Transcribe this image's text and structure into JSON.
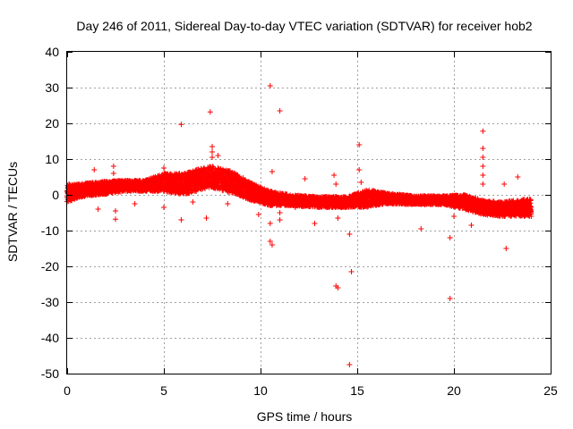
{
  "chart_data": {
    "type": "scatter",
    "title": "Day 246 of 2011, Sidereal Day-to-day VTEC variation (SDTVAR) for receiver hob2",
    "xlabel": "GPS time / hours",
    "ylabel": "SDTVAR / TECUs",
    "xlim": [
      0,
      25
    ],
    "ylim": [
      -50,
      40
    ],
    "xticks": [
      0,
      5,
      10,
      15,
      20,
      25
    ],
    "yticks": [
      -50,
      -40,
      -30,
      -20,
      -10,
      0,
      10,
      20,
      30,
      40
    ],
    "xtick_labels": [
      "0",
      "5",
      "10",
      "15",
      "20",
      "25"
    ],
    "ytick_labels": [
      "-50",
      "-40",
      "-30",
      "-20",
      "-10",
      "0",
      "10",
      "20",
      "30",
      "40"
    ],
    "grid": true,
    "marker": "+",
    "color": "#ff0000",
    "trend": [
      {
        "x": 0.0,
        "y": 0.5,
        "spread": 2.5
      },
      {
        "x": 0.5,
        "y": 1.0,
        "spread": 2.0
      },
      {
        "x": 1.0,
        "y": 1.5,
        "spread": 1.8
      },
      {
        "x": 2.0,
        "y": 2.0,
        "spread": 1.8
      },
      {
        "x": 3.0,
        "y": 2.5,
        "spread": 1.5
      },
      {
        "x": 4.0,
        "y": 2.5,
        "spread": 1.5
      },
      {
        "x": 5.0,
        "y": 3.5,
        "spread": 2.5
      },
      {
        "x": 6.0,
        "y": 3.0,
        "spread": 3.0
      },
      {
        "x": 7.0,
        "y": 4.5,
        "spread": 3.0
      },
      {
        "x": 7.5,
        "y": 5.0,
        "spread": 3.0
      },
      {
        "x": 8.5,
        "y": 3.5,
        "spread": 3.0
      },
      {
        "x": 9.5,
        "y": 1.0,
        "spread": 2.5
      },
      {
        "x": 10.5,
        "y": -1.0,
        "spread": 2.0
      },
      {
        "x": 11.5,
        "y": -1.5,
        "spread": 1.5
      },
      {
        "x": 13.0,
        "y": -2.0,
        "spread": 1.5
      },
      {
        "x": 14.5,
        "y": -2.0,
        "spread": 1.5
      },
      {
        "x": 15.5,
        "y": -1.0,
        "spread": 2.5
      },
      {
        "x": 16.5,
        "y": -1.0,
        "spread": 1.5
      },
      {
        "x": 18.0,
        "y": -1.5,
        "spread": 1.2
      },
      {
        "x": 19.5,
        "y": -1.5,
        "spread": 1.2
      },
      {
        "x": 20.5,
        "y": -2.0,
        "spread": 2.0
      },
      {
        "x": 21.5,
        "y": -3.5,
        "spread": 2.0
      },
      {
        "x": 22.5,
        "y": -4.0,
        "spread": 2.0
      },
      {
        "x": 24.0,
        "y": -3.5,
        "spread": 2.5
      }
    ],
    "sparse_points": [
      {
        "x": 1.4,
        "y": 7.0
      },
      {
        "x": 2.4,
        "y": 8.0
      },
      {
        "x": 2.4,
        "y": 6.0
      },
      {
        "x": 2.5,
        "y": -4.5
      },
      {
        "x": 2.5,
        "y": -6.8
      },
      {
        "x": 1.6,
        "y": -4.0
      },
      {
        "x": 3.5,
        "y": -2.5
      },
      {
        "x": 5.0,
        "y": -3.5
      },
      {
        "x": 5.0,
        "y": 7.5
      },
      {
        "x": 5.9,
        "y": 19.7
      },
      {
        "x": 5.9,
        "y": -7.0
      },
      {
        "x": 6.5,
        "y": -2.0
      },
      {
        "x": 7.2,
        "y": -6.5
      },
      {
        "x": 7.4,
        "y": 23.2
      },
      {
        "x": 7.5,
        "y": 13.5
      },
      {
        "x": 7.5,
        "y": 12.0
      },
      {
        "x": 7.5,
        "y": 10.5
      },
      {
        "x": 7.8,
        "y": 11.0
      },
      {
        "x": 8.3,
        "y": -2.5
      },
      {
        "x": 9.9,
        "y": -5.5
      },
      {
        "x": 10.5,
        "y": 30.5
      },
      {
        "x": 11.0,
        "y": 23.5
      },
      {
        "x": 10.6,
        "y": 6.5
      },
      {
        "x": 10.5,
        "y": -8.0
      },
      {
        "x": 10.5,
        "y": -13.0
      },
      {
        "x": 10.6,
        "y": -14.0
      },
      {
        "x": 11.0,
        "y": -7.0
      },
      {
        "x": 11.0,
        "y": -5.0
      },
      {
        "x": 11.8,
        "y": -3.5
      },
      {
        "x": 12.3,
        "y": 4.5
      },
      {
        "x": 12.5,
        "y": -1.0
      },
      {
        "x": 12.8,
        "y": -8.0
      },
      {
        "x": 13.8,
        "y": 5.5
      },
      {
        "x": 13.9,
        "y": 3.0
      },
      {
        "x": 14.0,
        "y": -6.5
      },
      {
        "x": 13.9,
        "y": -25.5
      },
      {
        "x": 14.0,
        "y": -26.0
      },
      {
        "x": 14.6,
        "y": -11.0
      },
      {
        "x": 14.7,
        "y": -21.5
      },
      {
        "x": 14.6,
        "y": -47.5
      },
      {
        "x": 15.1,
        "y": 14.0
      },
      {
        "x": 15.1,
        "y": 7.0
      },
      {
        "x": 15.2,
        "y": 3.5
      },
      {
        "x": 18.3,
        "y": -9.5
      },
      {
        "x": 19.8,
        "y": -12.0
      },
      {
        "x": 19.8,
        "y": -29.0
      },
      {
        "x": 20.0,
        "y": -6.0
      },
      {
        "x": 20.9,
        "y": -8.5
      },
      {
        "x": 21.5,
        "y": 17.8
      },
      {
        "x": 21.5,
        "y": 13.0
      },
      {
        "x": 21.5,
        "y": 10.5
      },
      {
        "x": 21.5,
        "y": 8.0
      },
      {
        "x": 21.5,
        "y": 5.5
      },
      {
        "x": 21.5,
        "y": 3.0
      },
      {
        "x": 22.6,
        "y": 3.0
      },
      {
        "x": 22.7,
        "y": -15.0
      },
      {
        "x": 23.3,
        "y": 5.0
      },
      {
        "x": 24.0,
        "y": -6.0
      }
    ]
  }
}
